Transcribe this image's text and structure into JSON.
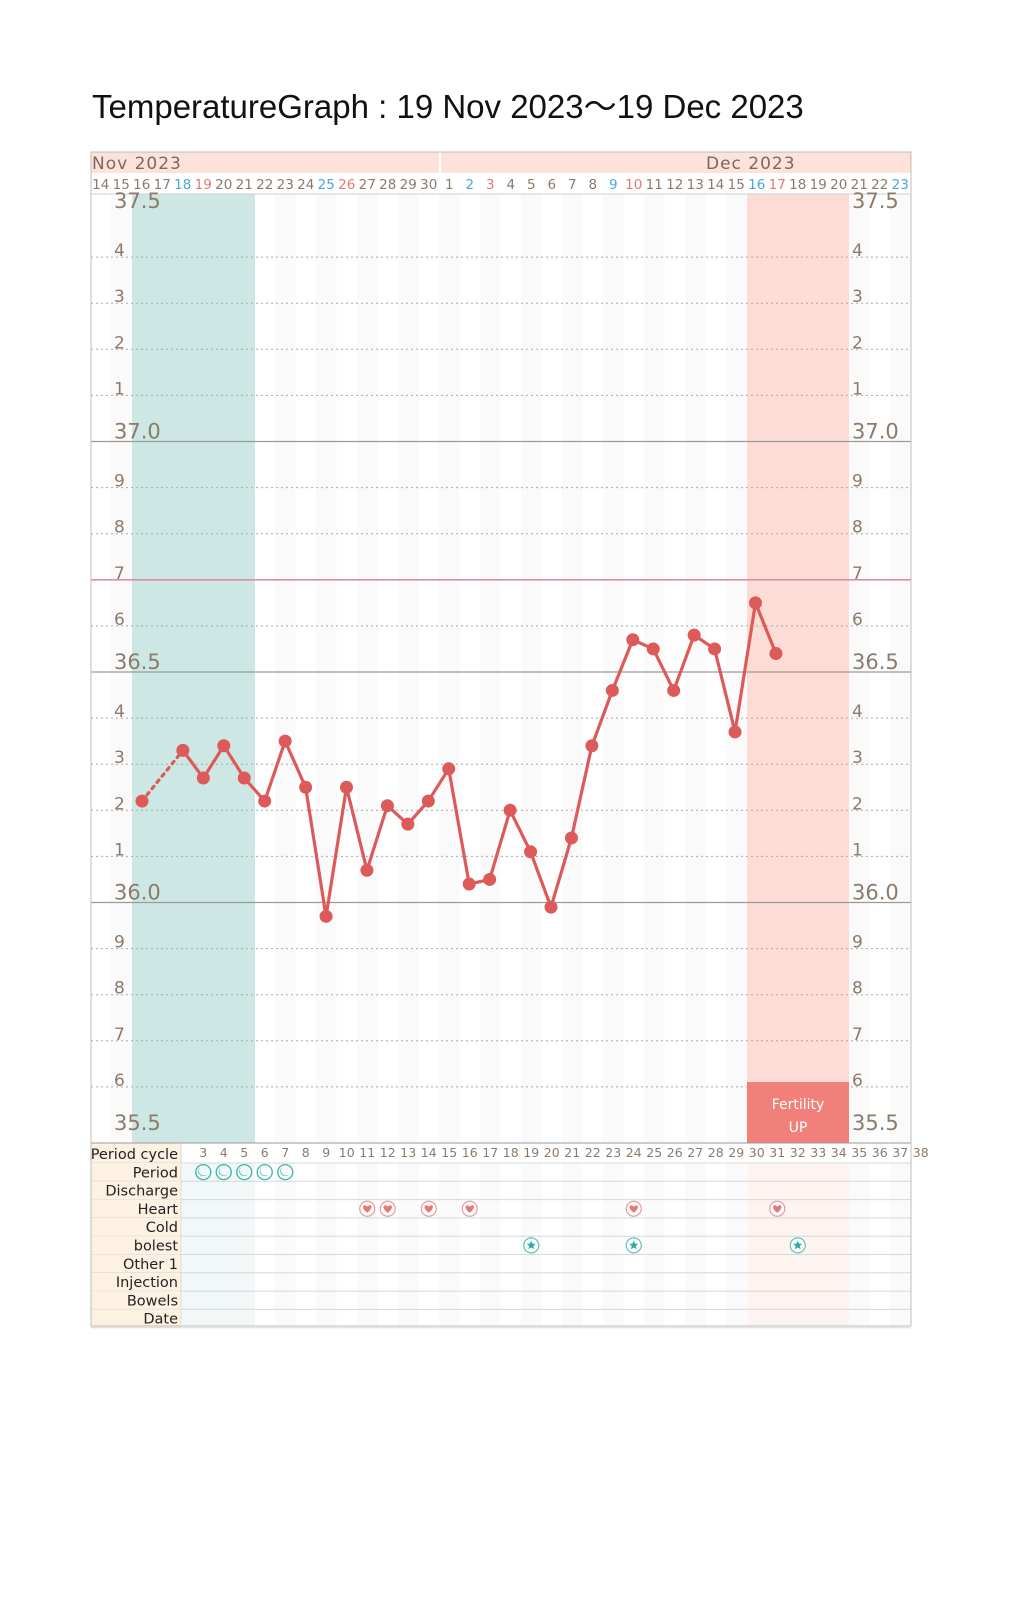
{
  "title": "TemperatureGraph : 19 Nov 2023～19 Dec 2023",
  "colors": {
    "line": "#dc5a5a",
    "period_band": "#cde8e4",
    "fertile_band": "#fcdcd4",
    "header_bg": "#fde2da",
    "row_label_bg": "#fdf1e2",
    "cover_line": "#d98fa6",
    "fertility_box": "#f08079",
    "blue_day": "#4aa8d8",
    "red_day": "#e87873",
    "gray_day": "#8c7a6a"
  },
  "chart_data": {
    "type": "line",
    "months": [
      "Nov 2023",
      "Dec 2023"
    ],
    "calendar_days": [
      {
        "d": "14",
        "c": "gray"
      },
      {
        "d": "15",
        "c": "gray"
      },
      {
        "d": "16",
        "c": "gray"
      },
      {
        "d": "17",
        "c": "gray"
      },
      {
        "d": "18",
        "c": "blue"
      },
      {
        "d": "19",
        "c": "red"
      },
      {
        "d": "20",
        "c": "gray"
      },
      {
        "d": "21",
        "c": "gray"
      },
      {
        "d": "22",
        "c": "gray"
      },
      {
        "d": "23",
        "c": "gray"
      },
      {
        "d": "24",
        "c": "gray"
      },
      {
        "d": "25",
        "c": "blue"
      },
      {
        "d": "26",
        "c": "red"
      },
      {
        "d": "27",
        "c": "gray"
      },
      {
        "d": "28",
        "c": "gray"
      },
      {
        "d": "29",
        "c": "gray"
      },
      {
        "d": "30",
        "c": "gray"
      },
      {
        "d": "1",
        "c": "gray"
      },
      {
        "d": "2",
        "c": "blue"
      },
      {
        "d": "3",
        "c": "red"
      },
      {
        "d": "4",
        "c": "gray"
      },
      {
        "d": "5",
        "c": "gray"
      },
      {
        "d": "6",
        "c": "gray"
      },
      {
        "d": "7",
        "c": "gray"
      },
      {
        "d": "8",
        "c": "gray"
      },
      {
        "d": "9",
        "c": "blue"
      },
      {
        "d": "10",
        "c": "red"
      },
      {
        "d": "11",
        "c": "gray"
      },
      {
        "d": "12",
        "c": "gray"
      },
      {
        "d": "13",
        "c": "gray"
      },
      {
        "d": "14",
        "c": "gray"
      },
      {
        "d": "15",
        "c": "gray"
      },
      {
        "d": "16",
        "c": "blue"
      },
      {
        "d": "17",
        "c": "red"
      },
      {
        "d": "18",
        "c": "gray"
      },
      {
        "d": "19",
        "c": "gray"
      },
      {
        "d": "20",
        "c": "gray"
      },
      {
        "d": "21",
        "c": "gray"
      },
      {
        "d": "22",
        "c": "gray"
      },
      {
        "d": "23",
        "c": "blue"
      }
    ],
    "cycle_days": [
      "3",
      "4",
      "5",
      "6",
      "7",
      "8",
      "9",
      "10",
      "11",
      "12",
      "13",
      "14",
      "15",
      "16",
      "17",
      "18",
      "19",
      "20",
      "21",
      "22",
      "23",
      "24",
      "25",
      "26",
      "27",
      "28",
      "29",
      "30",
      "31",
      "32",
      "33",
      "34",
      "35",
      "36",
      "37",
      "38"
    ],
    "ylim": [
      35.5,
      37.5
    ],
    "y_major_labels": [
      "37.5",
      "37.0",
      "36.5",
      "36.0",
      "35.5"
    ],
    "y_minor_labels": [
      "4",
      "3",
      "2",
      "1",
      "9",
      "8",
      "7",
      "6"
    ],
    "cover_line_value": 36.7,
    "period_band_days": [
      2,
      7
    ],
    "fertile_band_days": [
      33,
      37
    ],
    "fertility_label": [
      "Fertility",
      "UP"
    ],
    "series": [
      {
        "points": [
          {
            "day": 3,
            "t": 36.22
          },
          {
            "day": 5,
            "t": 36.33
          },
          {
            "day": 6,
            "t": 36.27
          },
          {
            "day": 7,
            "t": 36.34
          },
          {
            "day": 8,
            "t": 36.27
          },
          {
            "day": 9,
            "t": 36.22
          },
          {
            "day": 10,
            "t": 36.35
          },
          {
            "day": 11,
            "t": 36.25
          },
          {
            "day": 12,
            "t": 35.97
          },
          {
            "day": 13,
            "t": 36.25
          },
          {
            "day": 14,
            "t": 36.07
          },
          {
            "day": 15,
            "t": 36.21
          },
          {
            "day": 16,
            "t": 36.17
          },
          {
            "day": 17,
            "t": 36.22
          },
          {
            "day": 18,
            "t": 36.29
          },
          {
            "day": 19,
            "t": 36.04
          },
          {
            "day": 20,
            "t": 36.05
          },
          {
            "day": 21,
            "t": 36.2
          },
          {
            "day": 22,
            "t": 36.11
          },
          {
            "day": 23,
            "t": 35.99
          },
          {
            "day": 24,
            "t": 36.14
          },
          {
            "day": 25,
            "t": 36.34
          },
          {
            "day": 26,
            "t": 36.46
          },
          {
            "day": 27,
            "t": 36.57
          },
          {
            "day": 28,
            "t": 36.55
          },
          {
            "day": 29,
            "t": 36.46
          },
          {
            "day": 30,
            "t": 36.58
          },
          {
            "day": 31,
            "t": 36.55
          },
          {
            "day": 32,
            "t": 36.37
          },
          {
            "day": 33,
            "t": 36.65
          },
          {
            "day": 34,
            "t": 36.54
          }
        ],
        "dotted_segments": [
          [
            3,
            5
          ]
        ]
      }
    ]
  },
  "rows": {
    "labels": [
      "Period cycle",
      "Period",
      "Discharge",
      "Heart",
      "Cold",
      "bolest",
      "Other 1",
      "Injection",
      "Bowels",
      "Date"
    ],
    "period_marks": [
      2,
      3,
      4,
      5,
      6
    ],
    "heart_marks": [
      11,
      12,
      14,
      16,
      24,
      31
    ],
    "star_marks": [
      19,
      24,
      32
    ]
  },
  "icons": {
    "period": "crescent-moon-icon",
    "heart": "heart-icon",
    "star": "star-icon"
  }
}
